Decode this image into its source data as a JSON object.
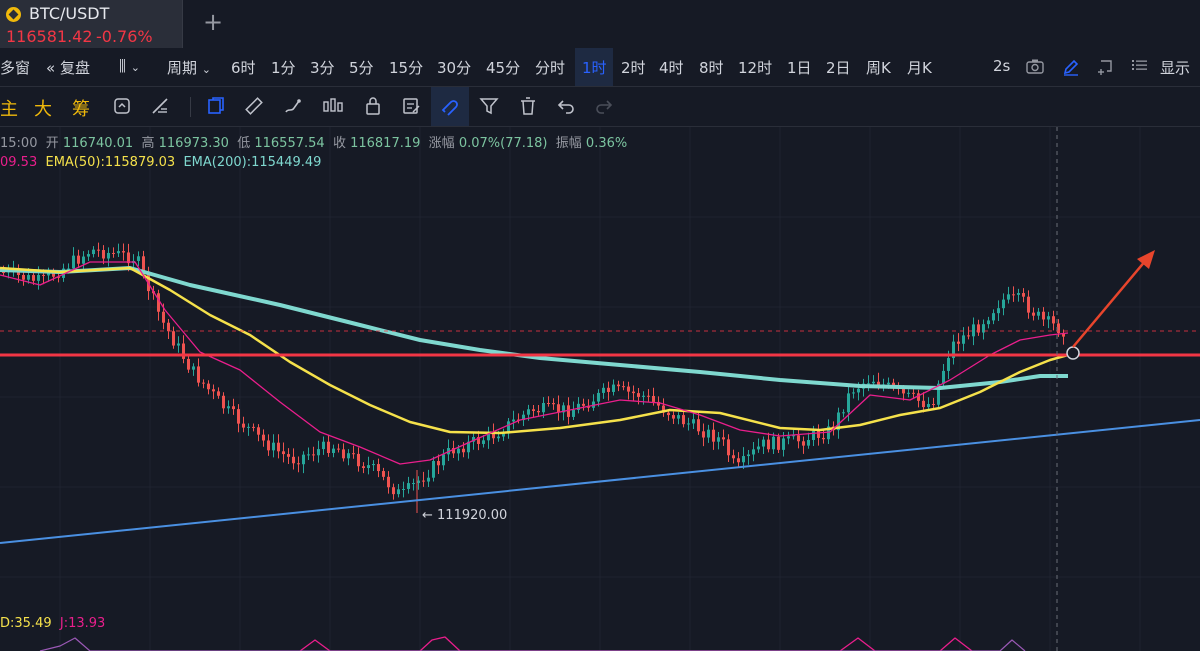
{
  "tab": {
    "symbol": "BTC/USDT",
    "price": "116581.42",
    "change": "-0.76%",
    "add_icon": "plus-icon"
  },
  "toolbar": {
    "multi_window": "多窗",
    "replay": "复盘",
    "period": "周期",
    "intervals": [
      "6时",
      "1分",
      "3分",
      "5分",
      "15分",
      "30分",
      "45分",
      "分时",
      "1时",
      "2时",
      "4时",
      "8时",
      "12时",
      "1日",
      "2日",
      "周K",
      "月K"
    ],
    "active_interval": "1时",
    "refresh": "2s",
    "display": "显示",
    "accent_color": "#2962ff"
  },
  "drawbar": {
    "chars": [
      "主",
      "大",
      "筹"
    ],
    "tool_icons": [
      "cursor-icon",
      "ruler-icon",
      "brush-icon",
      "candles-icon",
      "lock-icon",
      "note-icon",
      "magnet-icon",
      "filter-icon",
      "trash-icon",
      "undo-icon",
      "redo-icon"
    ]
  },
  "ohlc": {
    "time": "15:00",
    "open_label": "开",
    "open": "116740.01",
    "high_label": "高",
    "high": "116973.30",
    "low_label": "低",
    "low": "116557.54",
    "close_label": "收",
    "close": "116817.19",
    "change_label": "涨幅",
    "change": "0.07%(77.18)",
    "amplitude_label": "振幅",
    "amplitude": "0.36%"
  },
  "ema": {
    "ema_short_value": "09.53",
    "ema50": "EMA(50):115879.03",
    "ema200": "EMA(200):115449.49",
    "colors": {
      "short": "#e91e8c",
      "ema50": "#f5e14b",
      "ema200": "#7fd8cf"
    }
  },
  "chart_data": {
    "type": "candlestick",
    "low_marker_label": "← 111920.00",
    "colors": {
      "up": "#26a69a",
      "down": "#ef5350",
      "support": "#f23645",
      "trend": "#4a90e2",
      "arrow": "#e8452c"
    }
  },
  "kdj": {
    "d": "D:35.49",
    "j": "J:13.93"
  }
}
